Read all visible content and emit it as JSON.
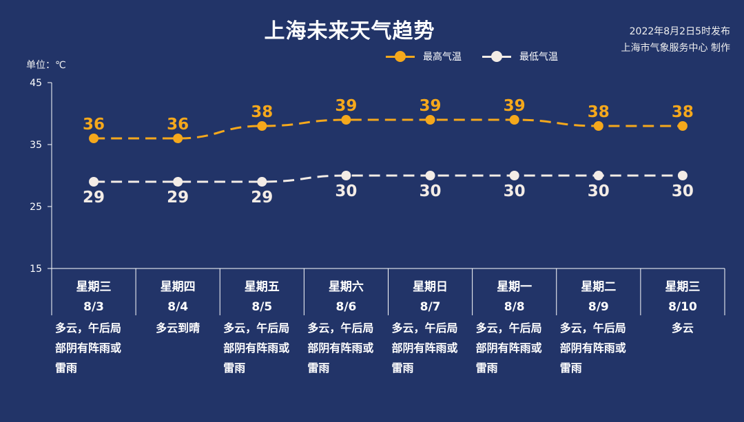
{
  "title": "上海未来天气趋势",
  "issued": "2022年8月2日5时发布",
  "publisher": "上海市气象服务中心 制作",
  "unit_label": "单位：℃",
  "colors": {
    "background": "#223468",
    "max": "#f5a81c",
    "min": "#f3ece6"
  },
  "chart_data": {
    "type": "line",
    "title": "上海未来天气趋势",
    "ylabel": "单位：℃",
    "ylim": [
      15,
      45
    ],
    "yticks": [
      15,
      25,
      35,
      45
    ],
    "grid": false,
    "legend_position": "top-right",
    "categories": [
      "8/3",
      "8/4",
      "8/5",
      "8/6",
      "8/7",
      "8/8",
      "8/9",
      "8/10"
    ],
    "series": [
      {
        "name": "最高气温",
        "values": [
          36,
          36,
          38,
          39,
          39,
          39,
          38,
          38
        ],
        "color": "#f5a81c",
        "style": "dashed"
      },
      {
        "name": "最低气温",
        "values": [
          29,
          29,
          29,
          30,
          30,
          30,
          30,
          30
        ],
        "color": "#f3ece6",
        "style": "dashed"
      }
    ]
  },
  "days": [
    {
      "weekday": "星期三",
      "date": "8/3",
      "weather": "多云，午后局部阴有阵雨或雷雨"
    },
    {
      "weekday": "星期四",
      "date": "8/4",
      "weather": "多云到晴"
    },
    {
      "weekday": "星期五",
      "date": "8/5",
      "weather": "多云，午后局部阴有阵雨或雷雨"
    },
    {
      "weekday": "星期六",
      "date": "8/6",
      "weather": "多云，午后局部阴有阵雨或雷雨"
    },
    {
      "weekday": "星期日",
      "date": "8/7",
      "weather": "多云，午后局部阴有阵雨或雷雨"
    },
    {
      "weekday": "星期一",
      "date": "8/8",
      "weather": "多云，午后局部阴有阵雨或雷雨"
    },
    {
      "weekday": "星期二",
      "date": "8/9",
      "weather": "多云，午后局部阴有阵雨或雷雨"
    },
    {
      "weekday": "星期三",
      "date": "8/10",
      "weather": "多云"
    }
  ]
}
